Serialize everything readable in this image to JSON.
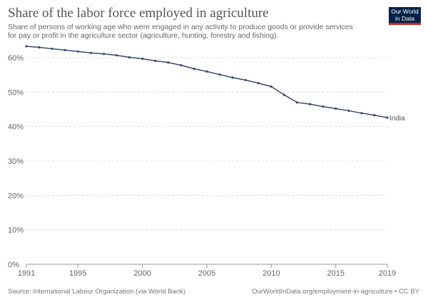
{
  "header": {
    "title": "Share of the labor force employed in agriculture",
    "subtitle": "Share of persons of working age who were engaged in any activity to produce goods or provide services for pay or profit in the agriculture sector (agriculture, hunting, forestry and fishing).",
    "logo": "Our World in Data"
  },
  "footer": {
    "source": "Source: International Labour Organization (via World Bank)",
    "url": "OurWorldInData.org/employment-in-agriculture • CC BY"
  },
  "chart_data": {
    "type": "line",
    "title": "Share of the labor force employed in agriculture",
    "xlabel": "",
    "ylabel": "",
    "ylim": [
      0,
      60
    ],
    "xlim": [
      1991,
      2019
    ],
    "yticks": [
      "0%",
      "10%",
      "20%",
      "30%",
      "40%",
      "50%",
      "60%"
    ],
    "xticks": [
      "1991",
      "1995",
      "2000",
      "2005",
      "2010",
      "2015",
      "2019"
    ],
    "grid": true,
    "color": "#3a4a6b",
    "series": [
      {
        "name": "India",
        "x": [
          1991,
          1992,
          1993,
          1994,
          1995,
          1996,
          1997,
          1998,
          1999,
          2000,
          2001,
          2002,
          2003,
          2004,
          2005,
          2006,
          2007,
          2008,
          2009,
          2010,
          2011,
          2012,
          2013,
          2014,
          2015,
          2016,
          2017,
          2018,
          2019
        ],
        "values": [
          63.3,
          63.0,
          62.6,
          62.2,
          61.8,
          61.4,
          61.1,
          60.7,
          60.1,
          59.7,
          59.1,
          58.6,
          57.8,
          56.8,
          56.0,
          55.1,
          54.2,
          53.5,
          52.6,
          51.6,
          49.2,
          47.0,
          46.5,
          45.8,
          45.2,
          44.6,
          43.9,
          43.3,
          42.6
        ]
      }
    ]
  }
}
